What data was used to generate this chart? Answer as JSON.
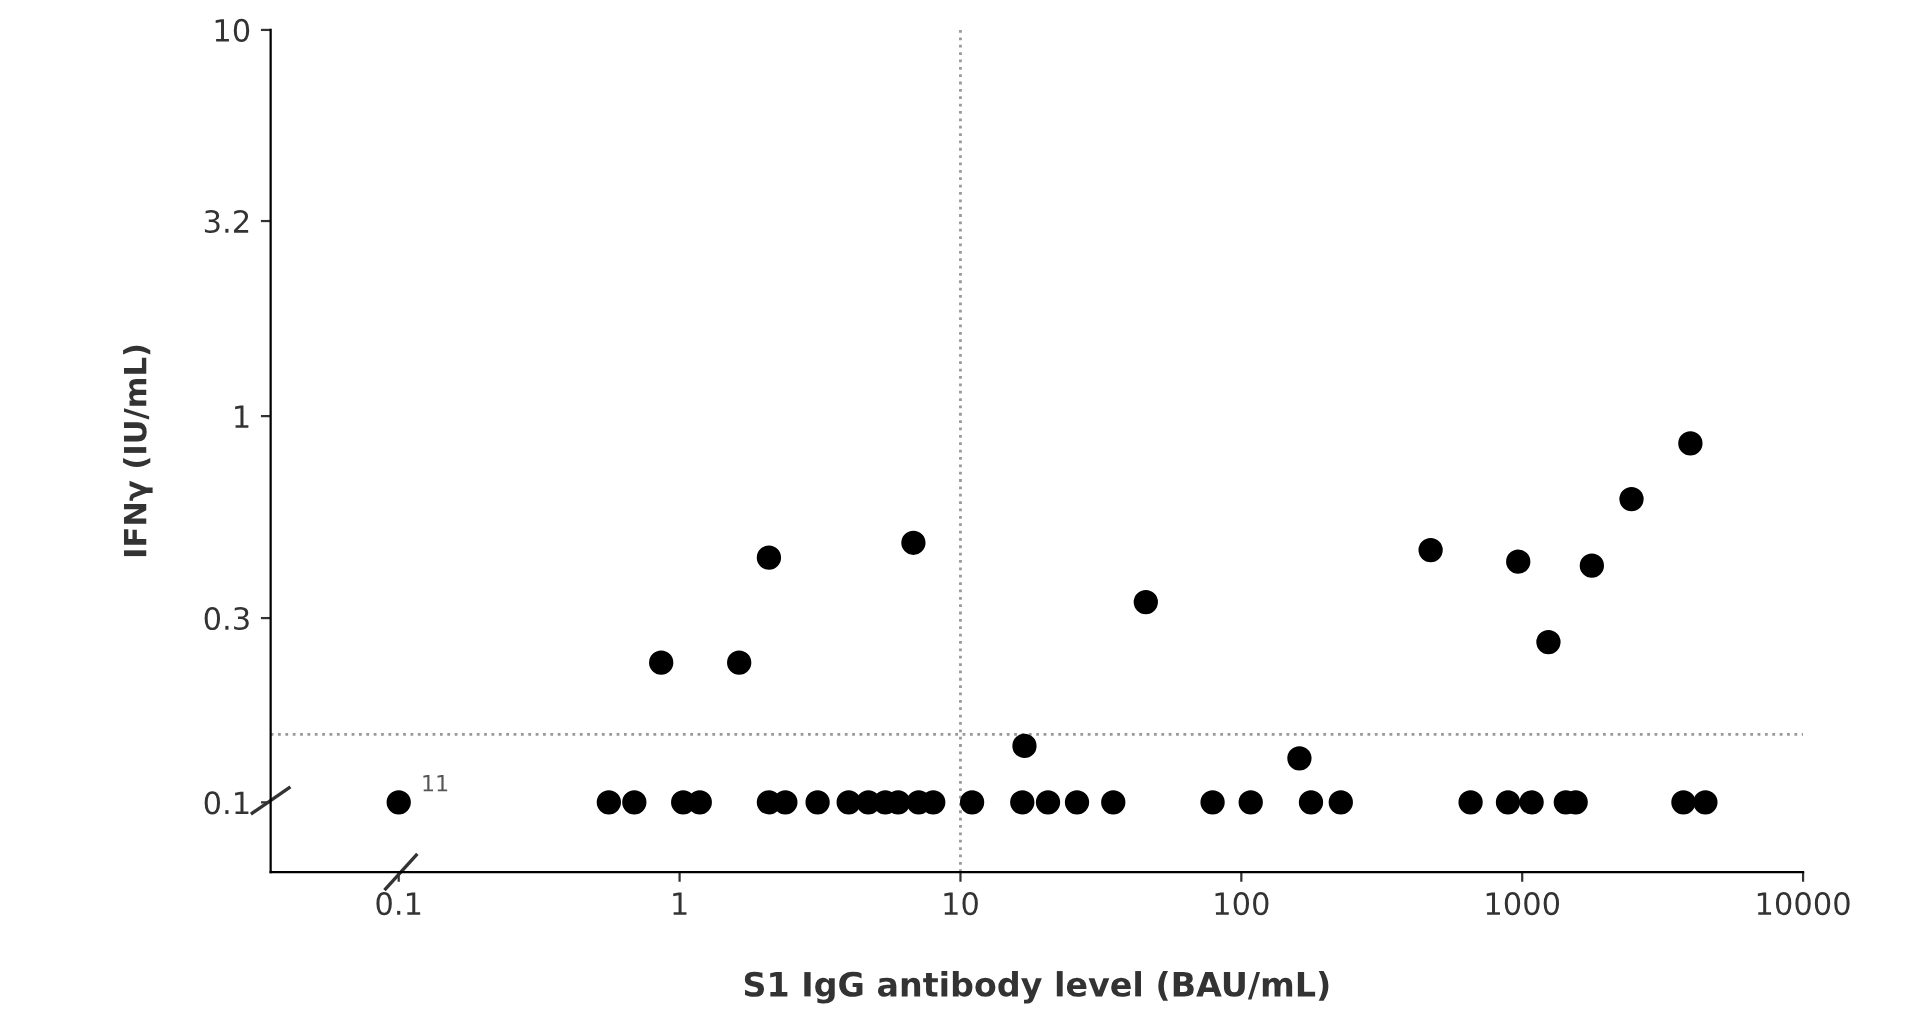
{
  "chart_data": {
    "type": "scatter",
    "xlabel": "S1 IgG antibody level (BAU/mL)",
    "ylabel": "IFNγ (IU/mL)",
    "series": [
      {
        "color": "#000000",
        "x": [
          0.86,
          1.63,
          2.08,
          6.8,
          16.9,
          45.7,
          161,
          472,
          968,
          1240,
          1770,
          2450,
          3970,
          0.1,
          0.56,
          0.69,
          1.03,
          1.18,
          2.08,
          2.38,
          3.1,
          4.0,
          4.7,
          5.4,
          6.0,
          7.1,
          8.0,
          11,
          16.6,
          20.5,
          26,
          35,
          79,
          108,
          177,
          226,
          655,
          890,
          1080,
          1430,
          1550,
          3750,
          4490
        ],
        "values": [
          0.23,
          0.23,
          0.43,
          0.47,
          0.14,
          0.33,
          0.13,
          0.45,
          0.42,
          0.26,
          0.41,
          0.61,
          0.85,
          0.1,
          0.1,
          0.1,
          0.1,
          0.1,
          0.1,
          0.1,
          0.1,
          0.1,
          0.1,
          0.1,
          0.1,
          0.1,
          0.1,
          0.1,
          0.1,
          0.1,
          0.1,
          0.1,
          0.1,
          0.1,
          0.1,
          0.1,
          0.1,
          0.1,
          0.1,
          0.1,
          0.1,
          0.1,
          0.1
        ]
      }
    ],
    "log": "xy",
    "marker": "circle",
    "grid": false,
    "legend": false,
    "xlim": [
      0.035,
      10000
    ],
    "xticks": [
      0.1,
      1,
      10,
      100,
      1000,
      10000
    ],
    "ylim": [
      0.066,
      10
    ],
    "yticks": [
      0.1,
      0.3,
      1,
      3.2,
      10
    ],
    "ref_lines": [
      {
        "axis": "x",
        "value": 10,
        "color": "#999999",
        "line_style": "dotted"
      },
      {
        "axis": "y",
        "value": 0.15,
        "color": "#999999",
        "line_style": "dotted"
      }
    ],
    "annotations": [
      {
        "text": "11",
        "x": 0.1,
        "y": 0.1
      }
    ]
  }
}
